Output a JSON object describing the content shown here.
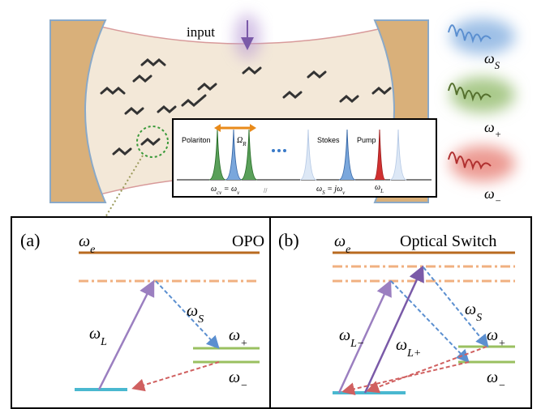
{
  "cavity": {
    "input": "input",
    "outputs": [
      [
        "ω",
        "S"
      ],
      [
        "ω",
        "+"
      ],
      [
        "ω",
        "−"
      ]
    ]
  },
  "spectrum": {
    "polariton": "Polariton",
    "rabi": [
      "Ω",
      "R"
    ],
    "stokes": "Stokes",
    "pump": "Pump",
    "break": "//",
    "axis": [
      [
        "ω",
        "cv",
        " = ω",
        "v"
      ],
      [
        "ω",
        "S",
        " = jω",
        "v"
      ],
      [
        "ω",
        "L"
      ]
    ]
  },
  "panel_a": {
    "tag": "(a)",
    "title": "OPO",
    "excited": [
      "ω",
      "e"
    ],
    "pump": [
      "ω",
      "L"
    ],
    "stokes": [
      "ω",
      "S"
    ],
    "plus": [
      "ω",
      "+"
    ],
    "minus": [
      "ω",
      "−"
    ]
  },
  "panel_b": {
    "tag": "(b)",
    "title": "Optical Switch",
    "excited": [
      "ω",
      "e"
    ],
    "pumps": [
      [
        "ω",
        "L−"
      ],
      [
        "ω",
        "L+"
      ]
    ],
    "stokes": [
      "ω",
      "S"
    ],
    "plus": [
      "ω",
      "+"
    ],
    "minus": [
      "ω",
      "−"
    ]
  }
}
